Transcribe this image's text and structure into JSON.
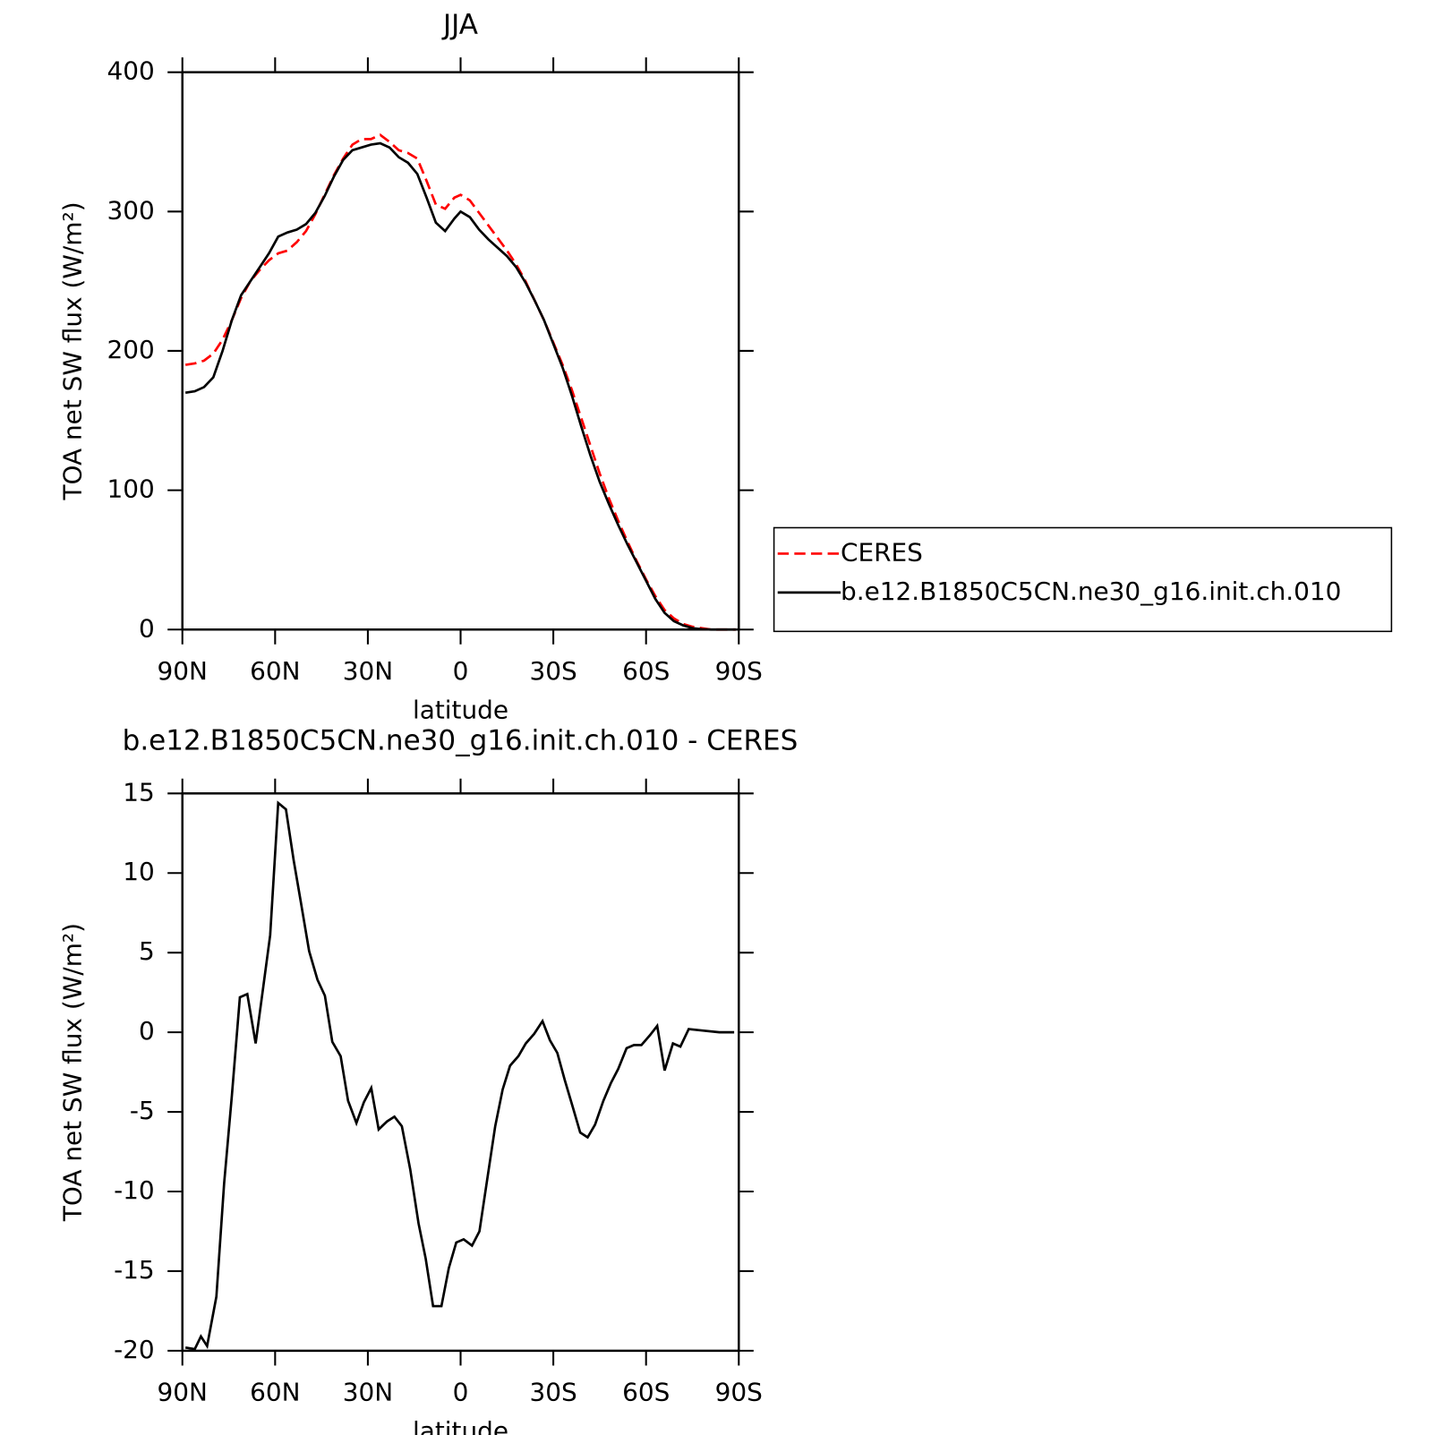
{
  "chart_data": [
    {
      "type": "line",
      "title": "JJA",
      "x_label": "latitude",
      "y_label": "TOA net SW flux (W/m²)",
      "x": [
        89,
        86,
        83,
        80,
        77,
        74,
        71,
        68,
        65,
        62,
        59,
        56,
        53,
        50,
        47,
        44,
        41,
        38,
        35,
        32,
        29,
        26,
        23,
        20,
        17,
        14,
        11,
        8,
        5,
        2,
        0,
        -3,
        -6,
        -9,
        -12,
        -15,
        -18,
        -21,
        -24,
        -27,
        -30,
        -33,
        -36,
        -39,
        -42,
        -45,
        -48,
        -51,
        -54,
        -57,
        -60,
        -63,
        -66,
        -69,
        -72,
        -75,
        -78,
        -81,
        -84,
        -87,
        -89
      ],
      "series": [
        {
          "name": "CERES",
          "color": "#ff0000",
          "linestyle": "dashed",
          "values": [
            190,
            191,
            193,
            198,
            208,
            222,
            238,
            250,
            258,
            265,
            270,
            272,
            278,
            286,
            298,
            312,
            326,
            338,
            348,
            352,
            352,
            355,
            350,
            344,
            342,
            338,
            322,
            305,
            302,
            310,
            312,
            308,
            299,
            290,
            281,
            272,
            262,
            250,
            236,
            222,
            206,
            190,
            172,
            152,
            132,
            112,
            94,
            78,
            63,
            49,
            36,
            24,
            14,
            8,
            4,
            2,
            1,
            0,
            0,
            0,
            0
          ]
        },
        {
          "name": "b.e12.B1850C5CN.ne30_g16.init.ch.010",
          "color": "#000000",
          "linestyle": "solid",
          "values": [
            170,
            171,
            174,
            181,
            200,
            222,
            240,
            250,
            260,
            270,
            282,
            285,
            287,
            291,
            299,
            311,
            325,
            337,
            344,
            346,
            348,
            349,
            346,
            339,
            335,
            327,
            310,
            292,
            286,
            295,
            300,
            296,
            287,
            280,
            274,
            268,
            260,
            249,
            236,
            222,
            205,
            188,
            168,
            146,
            125,
            106,
            90,
            75,
            61,
            48,
            35,
            22,
            12,
            6,
            3,
            1,
            0.3,
            0,
            0,
            0,
            0
          ]
        }
      ],
      "xlim": [
        90,
        -90
      ],
      "xticks": [
        {
          "value": 90,
          "label": "90N"
        },
        {
          "value": 60,
          "label": "60N"
        },
        {
          "value": 30,
          "label": "30N"
        },
        0,
        {
          "value": -30,
          "label": "30S"
        },
        {
          "value": -60,
          "label": "60S"
        },
        {
          "value": -90,
          "label": "90S"
        }
      ],
      "ylim": [
        0,
        400
      ],
      "yticks": [
        0,
        100,
        200,
        300,
        400
      ],
      "legend": "right"
    },
    {
      "type": "line",
      "title": "b.e12.B1850C5CN.ne30_g16.init.ch.010 - CERES",
      "x_label": "latitude",
      "y_label": "TOA net SW flux (W/m²)",
      "x": [
        89,
        86,
        84,
        82,
        79,
        76.5,
        74,
        71.4,
        69,
        66.3,
        63.8,
        61.6,
        59,
        56.5,
        54,
        51.7,
        49,
        46.3,
        43.9,
        41.5,
        38.8,
        36.4,
        33.7,
        31.3,
        28.9,
        26.5,
        23.8,
        21.4,
        19,
        16.3,
        13.6,
        11.3,
        8.9,
        6.2,
        3.8,
        1.4,
        -1,
        -3.7,
        -6.1,
        -8.8,
        -11.2,
        -13.6,
        -16,
        -18.7,
        -21.1,
        -23.8,
        -26.5,
        -28.9,
        -31.3,
        -33.7,
        -36.3,
        -38.7,
        -41.1,
        -43.5,
        -46.2,
        -48.6,
        -51,
        -53.7,
        -56.1,
        -58.5,
        -61.2,
        -63.6,
        -66,
        -68.7,
        -71.1,
        -73.8,
        -78.6,
        -83.7,
        -88.5
      ],
      "series": [
        {
          "color": "#000000",
          "linestyle": "solid",
          "values": [
            -19.8,
            -19.9,
            -19.1,
            -19.7,
            -16.6,
            -9.5,
            -4,
            2.2,
            2.4,
            -0.7,
            2.9,
            6.1,
            14.4,
            14,
            10.8,
            8.2,
            5.1,
            3.3,
            2.3,
            -0.6,
            -1.5,
            -4.3,
            -5.7,
            -4.4,
            -3.5,
            -6.1,
            -5.6,
            -5.3,
            -5.9,
            -8.6,
            -12,
            -14.2,
            -17.2,
            -17.2,
            -14.8,
            -13.2,
            -13,
            -13.4,
            -12.5,
            -9,
            -5.9,
            -3.6,
            -2.1,
            -1.5,
            -0.7,
            -0.1,
            0.7,
            -0.5,
            -1.3,
            -3,
            -4.7,
            -6.3,
            -6.6,
            -5.8,
            -4.3,
            -3.2,
            -2.3,
            -1,
            -0.8,
            -0.8,
            -0.2,
            0.4,
            -2.4,
            -0.7,
            -0.9,
            0.2,
            0.1,
            0,
            0
          ]
        }
      ],
      "xlim": [
        90,
        -90
      ],
      "xticks": [
        {
          "value": 90,
          "label": "90N"
        },
        {
          "value": 60,
          "label": "60N"
        },
        {
          "value": 30,
          "label": "30N"
        },
        0,
        {
          "value": -30,
          "label": "30S"
        },
        {
          "value": -60,
          "label": "60S"
        },
        {
          "value": -90,
          "label": "90S"
        }
      ],
      "ylim": [
        -20,
        15
      ],
      "yticks": [
        -20,
        -15,
        -10,
        -5,
        0,
        5,
        10,
        15
      ]
    }
  ]
}
